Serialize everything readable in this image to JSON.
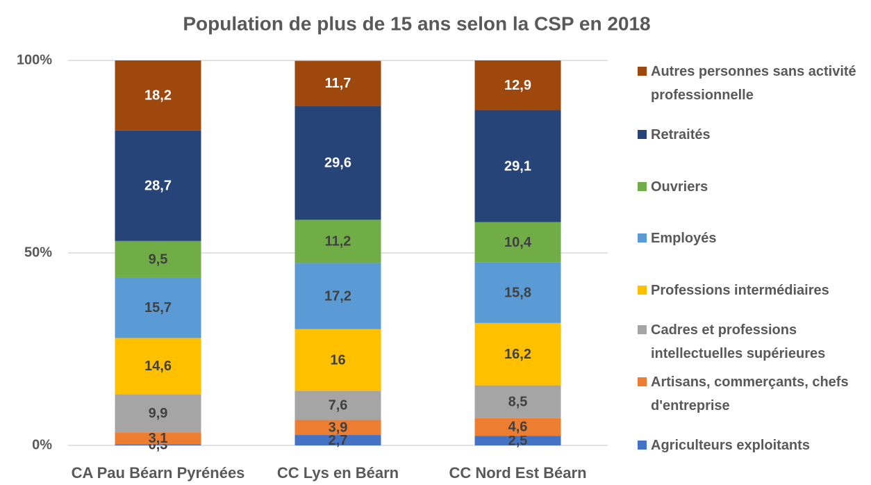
{
  "chart_data": {
    "type": "stacked_bar",
    "title": "Population de plus de 15 ans selon la CSP en 2018",
    "categories": [
      "CA Pau Béarn Pyrénées",
      "CC Lys en Béarn",
      "CC Nord Est Béarn"
    ],
    "ylim": [
      0,
      100
    ],
    "yticks": [
      {
        "value": 0,
        "label": "0%"
      },
      {
        "value": 50,
        "label": "50%"
      },
      {
        "value": 100,
        "label": "100%"
      }
    ],
    "grid": true,
    "legend": "right",
    "series": [
      {
        "name": "Agriculteurs exploitants",
        "color": "#4472c4",
        "label_color": "#404040",
        "values": [
          0.3,
          2.7,
          2.5
        ],
        "value_labels": [
          "0,3",
          "2,7",
          "2,5"
        ]
      },
      {
        "name": "Artisans, commerçants, chefs d'entreprise",
        "color": "#ed7d31",
        "label_color": "#404040",
        "values": [
          3.1,
          3.9,
          4.6
        ],
        "value_labels": [
          "3,1",
          "3,9",
          "4,6"
        ]
      },
      {
        "name": "Cadres et professions intellectuelles supérieures",
        "color": "#a5a5a5",
        "label_color": "#404040",
        "values": [
          9.9,
          7.6,
          8.5
        ],
        "value_labels": [
          "9,9",
          "7,6",
          "8,5"
        ]
      },
      {
        "name": "Professions intermédiaires",
        "color": "#ffc000",
        "label_color": "#404040",
        "values": [
          14.6,
          16,
          16.2
        ],
        "value_labels": [
          "14,6",
          "16",
          "16,2"
        ]
      },
      {
        "name": "Employés",
        "color": "#5b9bd5",
        "label_color": "#404040",
        "values": [
          15.7,
          17.2,
          15.8
        ],
        "value_labels": [
          "15,7",
          "17,2",
          "15,8"
        ]
      },
      {
        "name": "Ouvriers",
        "color": "#70ad47",
        "label_color": "#404040",
        "values": [
          9.5,
          11.2,
          10.4
        ],
        "value_labels": [
          "9,5",
          "11,2",
          "10,4"
        ]
      },
      {
        "name": "Retraités",
        "color": "#264478",
        "label_color": "#ffffff",
        "values": [
          28.7,
          29.6,
          29.1
        ],
        "value_labels": [
          "28,7",
          "29,6",
          "29,1"
        ]
      },
      {
        "name": "Autres personnes sans activité professionnelle",
        "color": "#9e480e",
        "label_color": "#ffffff",
        "values": [
          18.2,
          11.7,
          12.9
        ],
        "value_labels": [
          "18,2",
          "11,7",
          "12,9"
        ]
      }
    ]
  }
}
